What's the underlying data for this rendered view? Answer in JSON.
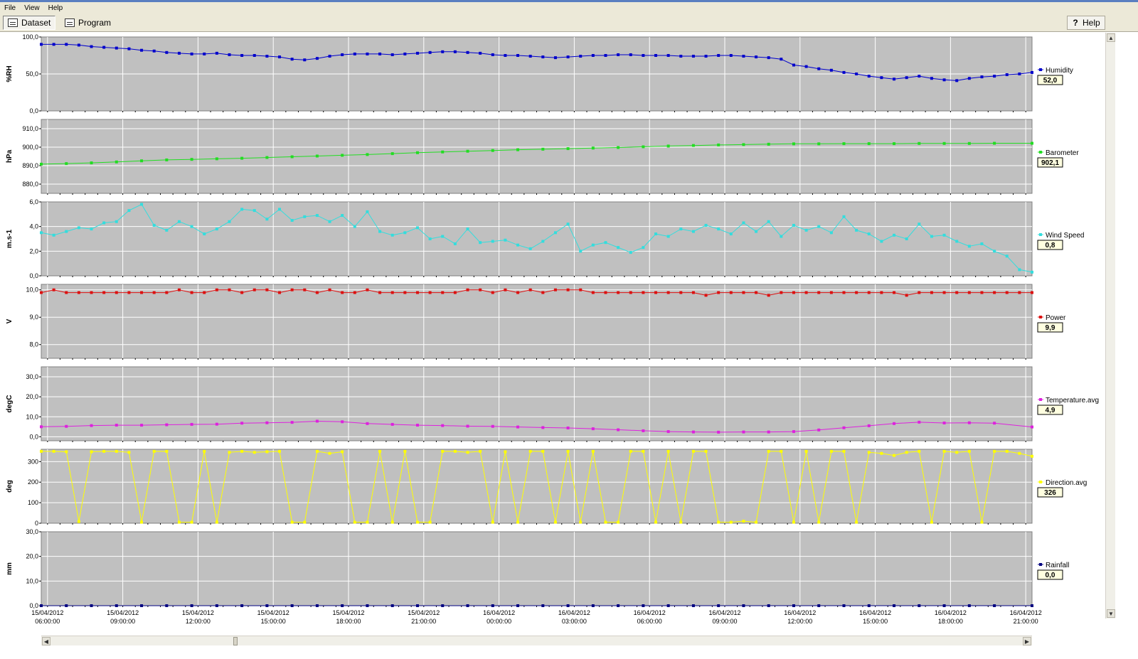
{
  "menu": {
    "items": [
      "File",
      "View",
      "Help"
    ]
  },
  "toolbar": {
    "dataset_label": "Dataset",
    "program_label": "Program",
    "help_label": "Help"
  },
  "x_axis": {
    "ticks": [
      {
        "date": "15/04/2012",
        "time": "06:00:00"
      },
      {
        "date": "15/04/2012",
        "time": "09:00:00"
      },
      {
        "date": "15/04/2012",
        "time": "12:00:00"
      },
      {
        "date": "15/04/2012",
        "time": "15:00:00"
      },
      {
        "date": "15/04/2012",
        "time": "18:00:00"
      },
      {
        "date": "15/04/2012",
        "time": "21:00:00"
      },
      {
        "date": "16/04/2012",
        "time": "00:00:00"
      },
      {
        "date": "16/04/2012",
        "time": "03:00:00"
      },
      {
        "date": "16/04/2012",
        "time": "06:00:00"
      },
      {
        "date": "16/04/2012",
        "time": "09:00:00"
      },
      {
        "date": "16/04/2012",
        "time": "12:00:00"
      },
      {
        "date": "16/04/2012",
        "time": "15:00:00"
      },
      {
        "date": "16/04/2012",
        "time": "18:00:00"
      },
      {
        "date": "16/04/2012",
        "time": "21:00:00"
      }
    ]
  },
  "colors": {
    "plot_background": "#c0c0c0",
    "grid": "#ffffff",
    "humidity": "#0000cc",
    "barometer": "#22dd22",
    "wind": "#33dddd",
    "power": "#dd1111",
    "temperature": "#dd22dd",
    "direction": "#ffff00",
    "rainfall": "#000080"
  },
  "chart_data": [
    {
      "type": "line",
      "ylabel": "%RH",
      "series": [
        {
          "name": "Humidity",
          "color": "#0000cc"
        }
      ],
      "current_value": "52,0",
      "ylim": [
        0,
        100
      ],
      "ticks": [
        "100,0",
        "50,0",
        "0,0"
      ],
      "tick_values": [
        100,
        50,
        0
      ],
      "x": [
        5.75,
        6.25,
        6.75,
        7.25,
        7.75,
        8.25,
        8.75,
        9.25,
        9.75,
        10.25,
        10.75,
        11.25,
        11.75,
        12.25,
        12.75,
        13.25,
        13.75,
        14.25,
        14.75,
        15.25,
        15.75,
        16.25,
        16.75,
        17.25,
        17.75,
        18.25,
        18.75,
        19.25,
        19.75,
        20.25,
        20.75,
        21.25,
        21.75,
        22.25,
        22.75,
        23.25,
        23.75,
        24.25,
        24.75,
        25.25,
        25.75,
        26.25,
        26.75,
        27.25,
        27.75,
        28.25,
        28.75,
        29.25,
        29.75,
        30.25,
        30.75,
        31.25,
        31.75,
        32.25,
        32.75,
        33.25,
        33.75,
        34.25,
        34.75,
        35.25,
        35.75,
        36.25,
        36.75,
        37.25,
        37.75,
        38.25,
        38.75,
        39.25,
        39.75,
        40.25,
        40.75,
        41.25,
        41.75,
        42.25,
        42.75,
        43.25,
        43.75,
        44.25,
        44.75,
        45.25
      ],
      "values": [
        90,
        90,
        90,
        89,
        87,
        86,
        85,
        84,
        82,
        81,
        79,
        78,
        77,
        77,
        78,
        76,
        75,
        75,
        74,
        73,
        70,
        69,
        71,
        74,
        76,
        77,
        77,
        77,
        76,
        77,
        78,
        79,
        80,
        80,
        79,
        78,
        76,
        75,
        75,
        74,
        73,
        72,
        73,
        74,
        75,
        75,
        76,
        76,
        75,
        75,
        75,
        74,
        74,
        74,
        75,
        75,
        74,
        73,
        72,
        70,
        62,
        60,
        57,
        55,
        52,
        50,
        47,
        45,
        43,
        45,
        47,
        44,
        42,
        41,
        44,
        46,
        47,
        49,
        50,
        52
      ]
    },
    {
      "type": "line",
      "ylabel": "hPa",
      "series": [
        {
          "name": "Barometer",
          "color": "#22dd22"
        }
      ],
      "current_value": "902,1",
      "ylim": [
        875,
        915
      ],
      "ticks": [
        "910,0",
        "900,0",
        "890,0",
        "880,0"
      ],
      "tick_values": [
        910,
        900,
        890,
        880
      ],
      "x": [
        5.75,
        6.75,
        7.75,
        8.75,
        9.75,
        10.75,
        11.75,
        12.75,
        13.75,
        14.75,
        15.75,
        16.75,
        17.75,
        18.75,
        19.75,
        20.75,
        21.75,
        22.75,
        23.75,
        24.75,
        25.75,
        26.75,
        27.75,
        28.75,
        29.75,
        30.75,
        31.75,
        32.75,
        33.75,
        34.75,
        35.75,
        36.75,
        37.75,
        38.75,
        39.75,
        40.75,
        41.75,
        42.75,
        43.75,
        45.25
      ],
      "values": [
        890.8,
        891.1,
        891.5,
        892.0,
        892.6,
        893.1,
        893.4,
        893.7,
        894.0,
        894.4,
        894.8,
        895.2,
        895.6,
        896.0,
        896.5,
        897.0,
        897.4,
        897.8,
        898.2,
        898.6,
        898.9,
        899.2,
        899.5,
        899.8,
        900.2,
        900.6,
        900.9,
        901.2,
        901.4,
        901.6,
        901.8,
        901.8,
        901.9,
        901.9,
        901.9,
        902.0,
        902.0,
        902.0,
        902.1,
        902.1
      ]
    },
    {
      "type": "line",
      "ylabel": "m.s-1",
      "series": [
        {
          "name": "Wind Speed",
          "color": "#33dddd"
        }
      ],
      "current_value": "0,8",
      "ylim": [
        0,
        6
      ],
      "ticks": [
        "6,0",
        "4,0",
        "2,0",
        "0,0"
      ],
      "tick_values": [
        6,
        4,
        2,
        0
      ],
      "x": [
        5.75,
        6.25,
        6.75,
        7.25,
        7.75,
        8.25,
        8.75,
        9.25,
        9.75,
        10.25,
        10.75,
        11.25,
        11.75,
        12.25,
        12.75,
        13.25,
        13.75,
        14.25,
        14.75,
        15.25,
        15.75,
        16.25,
        16.75,
        17.25,
        17.75,
        18.25,
        18.75,
        19.25,
        19.75,
        20.25,
        20.75,
        21.25,
        21.75,
        22.25,
        22.75,
        23.25,
        23.75,
        24.25,
        24.75,
        25.25,
        25.75,
        26.25,
        26.75,
        27.25,
        27.75,
        28.25,
        28.75,
        29.25,
        29.75,
        30.25,
        30.75,
        31.25,
        31.75,
        32.25,
        32.75,
        33.25,
        33.75,
        34.25,
        34.75,
        35.25,
        35.75,
        36.25,
        36.75,
        37.25,
        37.75,
        38.25,
        38.75,
        39.25,
        39.75,
        40.25,
        40.75,
        41.25,
        41.75,
        42.25,
        42.75,
        43.25,
        43.75,
        44.25,
        44.75,
        45.25
      ],
      "values": [
        3.5,
        3.3,
        3.6,
        3.9,
        3.8,
        4.3,
        4.4,
        5.3,
        5.8,
        4.1,
        3.7,
        4.4,
        4.0,
        3.4,
        3.8,
        4.4,
        5.4,
        5.3,
        4.6,
        5.4,
        4.5,
        4.8,
        4.9,
        4.4,
        4.9,
        4.0,
        5.2,
        3.6,
        3.3,
        3.5,
        3.9,
        3.0,
        3.2,
        2.6,
        3.8,
        2.7,
        2.8,
        2.9,
        2.5,
        2.2,
        2.8,
        3.5,
        4.2,
        2.0,
        2.5,
        2.7,
        2.3,
        1.9,
        2.3,
        3.4,
        3.2,
        3.8,
        3.6,
        4.1,
        3.8,
        3.4,
        4.3,
        3.6,
        4.4,
        3.2,
        4.1,
        3.7,
        4.0,
        3.5,
        4.8,
        3.7,
        3.4,
        2.8,
        3.3,
        3.0,
        4.2,
        3.2,
        3.3,
        2.8,
        2.4,
        2.6,
        2.0,
        1.6,
        0.5,
        0.3
      ]
    },
    {
      "type": "line",
      "ylabel": "V",
      "series": [
        {
          "name": "Power",
          "color": "#dd1111"
        }
      ],
      "current_value": "9,9",
      "ylim": [
        7.5,
        10.2
      ],
      "ticks": [
        "10,0",
        "9,0",
        "8,0"
      ],
      "tick_values": [
        10,
        9,
        8
      ],
      "x": [
        5.75,
        6.25,
        6.75,
        7.25,
        7.75,
        8.25,
        8.75,
        9.25,
        9.75,
        10.25,
        10.75,
        11.25,
        11.75,
        12.25,
        12.75,
        13.25,
        13.75,
        14.25,
        14.75,
        15.25,
        15.75,
        16.25,
        16.75,
        17.25,
        17.75,
        18.25,
        18.75,
        19.25,
        19.75,
        20.25,
        20.75,
        21.25,
        21.75,
        22.25,
        22.75,
        23.25,
        23.75,
        24.25,
        24.75,
        25.25,
        25.75,
        26.25,
        26.75,
        27.25,
        27.75,
        28.25,
        28.75,
        29.25,
        29.75,
        30.25,
        30.75,
        31.25,
        31.75,
        32.25,
        32.75,
        33.25,
        33.75,
        34.25,
        34.75,
        35.25,
        35.75,
        36.25,
        36.75,
        37.25,
        37.75,
        38.25,
        38.75,
        39.25,
        39.75,
        40.25,
        40.75,
        41.25,
        41.75,
        42.25,
        42.75,
        43.25,
        43.75,
        44.25,
        44.75,
        45.25
      ],
      "values": [
        9.9,
        10.0,
        9.9,
        9.9,
        9.9,
        9.9,
        9.9,
        9.9,
        9.9,
        9.9,
        9.9,
        10.0,
        9.9,
        9.9,
        10.0,
        10.0,
        9.9,
        10.0,
        10.0,
        9.9,
        10.0,
        10.0,
        9.9,
        10.0,
        9.9,
        9.9,
        10.0,
        9.9,
        9.9,
        9.9,
        9.9,
        9.9,
        9.9,
        9.9,
        10.0,
        10.0,
        9.9,
        10.0,
        9.9,
        10.0,
        9.9,
        10.0,
        10.0,
        10.0,
        9.9,
        9.9,
        9.9,
        9.9,
        9.9,
        9.9,
        9.9,
        9.9,
        9.9,
        9.8,
        9.9,
        9.9,
        9.9,
        9.9,
        9.8,
        9.9,
        9.9,
        9.9,
        9.9,
        9.9,
        9.9,
        9.9,
        9.9,
        9.9,
        9.9,
        9.8,
        9.9,
        9.9,
        9.9,
        9.9,
        9.9,
        9.9,
        9.9,
        9.9,
        9.9,
        9.9
      ]
    },
    {
      "type": "line",
      "ylabel": "degC",
      "series": [
        {
          "name": "Temperature.avg",
          "color": "#dd22dd"
        }
      ],
      "current_value": "4,9",
      "ylim": [
        -2,
        35
      ],
      "ticks": [
        "30,0",
        "20,0",
        "10,0",
        "0,0"
      ],
      "tick_values": [
        30,
        20,
        10,
        0
      ],
      "x": [
        5.75,
        6.75,
        7.75,
        8.75,
        9.75,
        10.75,
        11.75,
        12.75,
        13.75,
        14.75,
        15.75,
        16.75,
        17.75,
        18.75,
        19.75,
        20.75,
        21.75,
        22.75,
        23.75,
        24.75,
        25.75,
        26.75,
        27.75,
        28.75,
        29.75,
        30.75,
        31.75,
        32.75,
        33.75,
        34.75,
        35.75,
        36.75,
        37.75,
        38.75,
        39.75,
        40.75,
        41.75,
        42.75,
        43.75,
        45.25
      ],
      "values": [
        5.0,
        5.2,
        5.6,
        5.8,
        5.8,
        6.0,
        6.2,
        6.3,
        6.8,
        7.0,
        7.2,
        7.8,
        7.5,
        6.6,
        6.2,
        5.8,
        5.6,
        5.3,
        5.2,
        4.9,
        4.6,
        4.4,
        4.0,
        3.5,
        3.0,
        2.6,
        2.4,
        2.3,
        2.4,
        2.4,
        2.6,
        3.4,
        4.5,
        5.5,
        6.6,
        7.3,
        6.9,
        7.0,
        6.8,
        4.9
      ]
    },
    {
      "type": "line",
      "ylabel": "deg",
      "series": [
        {
          "name": "Direction.avg",
          "color": "#ffff00"
        }
      ],
      "current_value": "326",
      "ylim": [
        0,
        360
      ],
      "ticks": [
        "300",
        "200",
        "100",
        "0"
      ],
      "tick_values": [
        300,
        200,
        100,
        0
      ],
      "x": [
        5.75,
        6.25,
        6.75,
        7.25,
        7.75,
        8.25,
        8.75,
        9.25,
        9.75,
        10.25,
        10.75,
        11.25,
        11.75,
        12.25,
        12.75,
        13.25,
        13.75,
        14.25,
        14.75,
        15.25,
        15.75,
        16.25,
        16.75,
        17.25,
        17.75,
        18.25,
        18.75,
        19.25,
        19.75,
        20.25,
        20.75,
        21.25,
        21.75,
        22.25,
        22.75,
        23.25,
        23.75,
        24.25,
        24.75,
        25.25,
        25.75,
        26.25,
        26.75,
        27.25,
        27.75,
        28.25,
        28.75,
        29.25,
        29.75,
        30.25,
        30.75,
        31.25,
        31.75,
        32.25,
        32.75,
        33.25,
        33.75,
        34.25,
        34.75,
        35.25,
        35.75,
        36.25,
        36.75,
        37.25,
        37.75,
        38.25,
        38.75,
        39.25,
        39.75,
        40.25,
        40.75,
        41.25,
        41.75,
        42.25,
        42.75,
        43.25,
        43.75,
        44.25,
        44.75,
        45.25
      ],
      "values": [
        350,
        350,
        348,
        8,
        348,
        350,
        350,
        345,
        5,
        350,
        350,
        5,
        5,
        350,
        5,
        345,
        350,
        345,
        348,
        350,
        5,
        5,
        350,
        340,
        348,
        5,
        5,
        350,
        5,
        350,
        5,
        5,
        350,
        350,
        345,
        350,
        5,
        348,
        5,
        350,
        350,
        5,
        350,
        5,
        350,
        5,
        5,
        350,
        350,
        5,
        350,
        5,
        350,
        350,
        5,
        5,
        10,
        5,
        350,
        350,
        5,
        350,
        5,
        350,
        350,
        5,
        345,
        340,
        330,
        345,
        350,
        5,
        350,
        345,
        350,
        5,
        350,
        350,
        340,
        326
      ]
    },
    {
      "type": "line",
      "ylabel": "mm",
      "series": [
        {
          "name": "Rainfall",
          "color": "#000080"
        }
      ],
      "current_value": "0,0",
      "ylim": [
        0,
        30
      ],
      "ticks": [
        "30,0",
        "20,0",
        "10,0",
        "0,0"
      ],
      "tick_values": [
        30,
        20,
        10,
        0
      ],
      "x": [
        5.75,
        6.75,
        7.75,
        8.75,
        9.75,
        10.75,
        11.75,
        12.75,
        13.75,
        14.75,
        15.75,
        16.75,
        17.75,
        18.75,
        19.75,
        20.75,
        21.75,
        22.75,
        23.75,
        24.75,
        25.75,
        26.75,
        27.75,
        28.75,
        29.75,
        30.75,
        31.75,
        32.75,
        33.75,
        34.75,
        35.75,
        36.75,
        37.75,
        38.75,
        39.75,
        40.75,
        41.75,
        42.75,
        43.75,
        45.25
      ],
      "values": [
        0,
        0,
        0,
        0,
        0,
        0,
        0,
        0,
        0,
        0,
        0,
        0,
        0,
        0,
        0,
        0,
        0,
        0,
        0,
        0,
        0,
        0,
        0,
        0,
        0,
        0,
        0,
        0,
        0,
        0,
        0,
        0,
        0,
        0,
        0,
        0,
        0,
        0,
        0,
        0
      ]
    }
  ]
}
